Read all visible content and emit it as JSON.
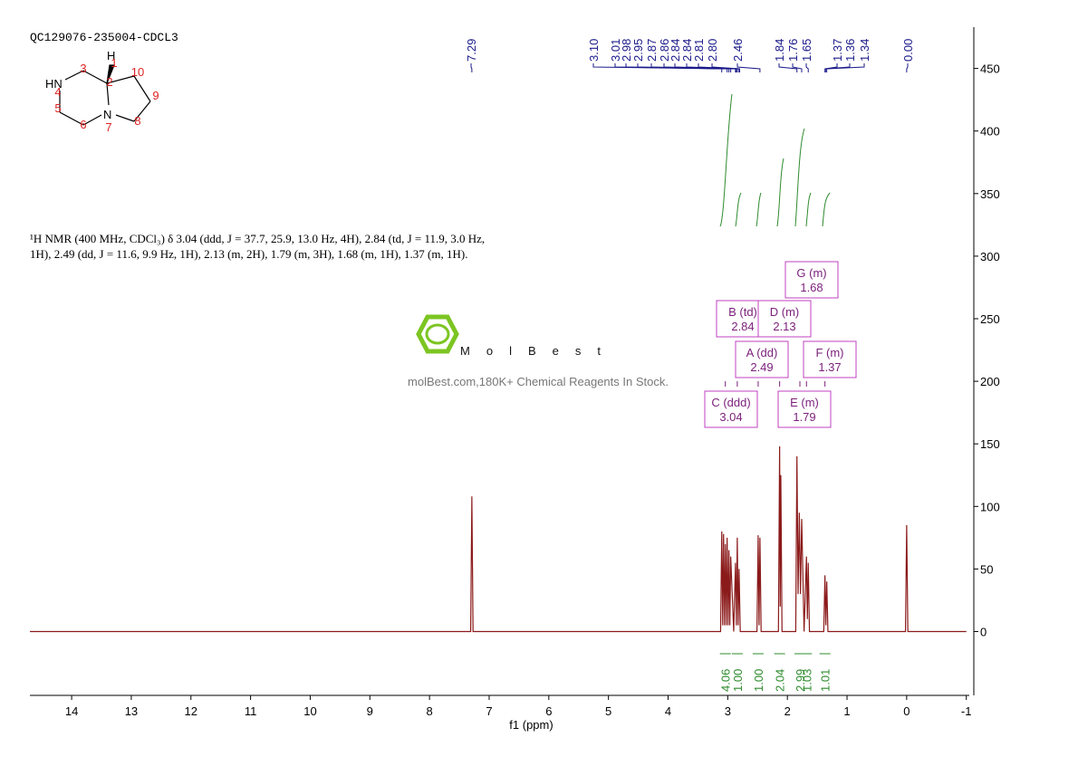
{
  "chart_data": {
    "type": "line",
    "title": "QC129076-235004-CDCL3",
    "annotation": [
      "¹H NMR (400 MHz, CDCl₃) δ 3.04 (ddd, J = 37.7, 25.9, 13.0 Hz, 4H), 2.84 (td, J = 11.9, 3.0 Hz,",
      "1H), 2.49 (dd, J = 11.6, 9.9 Hz, 1H), 2.13 (m, 2H), 1.79 (m, 3H), 1.68 (m, 1H), 1.37 (m, 1H)."
    ],
    "watermark": {
      "brand": "MolBest",
      "tagline": "molBest.com,180K+ Chemical Reagents In Stock."
    },
    "structure": {
      "hydrogen": "H",
      "amine": "HN",
      "nitrogen": "N",
      "atom_numbers": [
        1,
        2,
        3,
        4,
        5,
        6,
        7,
        8,
        9,
        10
      ]
    },
    "xlabel": "f1 (ppm)",
    "xlim": [
      14.7,
      -1.05
    ],
    "xticks": [
      14,
      13,
      12,
      11,
      10,
      9,
      8,
      7,
      6,
      5,
      4,
      3,
      2,
      1,
      0,
      -1
    ],
    "ylim": [
      -51,
      483
    ],
    "yticks": [
      0,
      50,
      100,
      150,
      200,
      250,
      300,
      350,
      400,
      450
    ],
    "color": "#8b1a1a",
    "x": [
      14.7,
      7.31,
      7.29,
      7.27,
      3.12,
      3.1,
      3.085,
      3.07,
      3.055,
      3.04,
      3.025,
      3.01,
      2.995,
      2.98,
      2.965,
      2.95,
      2.9,
      2.87,
      2.855,
      2.84,
      2.825,
      2.81,
      2.79,
      2.51,
      2.49,
      2.475,
      2.46,
      2.44,
      2.15,
      2.13,
      2.12,
      2.11,
      2.09,
      1.86,
      1.84,
      1.82,
      1.8,
      1.78,
      1.76,
      1.72,
      1.68,
      1.665,
      1.65,
      1.63,
      1.39,
      1.37,
      1.355,
      1.34,
      1.32,
      0.02,
      0.0,
      -0.02,
      -1.0
    ],
    "values": [
      0,
      0,
      108,
      0,
      0,
      80,
      5,
      78,
      5,
      70,
      5,
      75,
      5,
      65,
      5,
      60,
      0,
      55,
      5,
      75,
      5,
      50,
      0,
      0,
      77,
      5,
      75,
      0,
      0,
      148,
      20,
      125,
      0,
      0,
      140,
      30,
      95,
      30,
      90,
      0,
      60,
      10,
      55,
      0,
      0,
      45,
      5,
      40,
      0,
      0,
      85,
      0,
      0
    ],
    "peak_labels": [
      7.29,
      {
        "value": 3.1,
        "label": "3.10"
      },
      3.01,
      2.98,
      2.95,
      2.87,
      2.86,
      2.84,
      2.84,
      2.81,
      {
        "value": 2.8,
        "label": "2.80"
      },
      2.46,
      1.84,
      1.76,
      1.65,
      1.37,
      1.36,
      1.34,
      {
        "value": 0,
        "label": "0.00"
      }
    ],
    "multiplets": [
      {
        "name": "C (ddd)",
        "shift": 3.04,
        "integral": 4.06
      },
      {
        "name": "B (td)",
        "shift": 2.84,
        "integral": {
          "value": 1,
          "label": "1.00"
        }
      },
      {
        "name": "A (dd)",
        "shift": 2.49,
        "integral": {
          "value": 1,
          "label": "1.00"
        }
      },
      {
        "name": "D (m)",
        "shift": 2.13,
        "integral": 2.04
      },
      {
        "name": "E (m)",
        "shift": 1.79,
        "integral": 2.99
      },
      {
        "name": "G (m)",
        "shift": 1.68,
        "integral": 1.03
      },
      {
        "name": "F (m)",
        "shift": 1.37,
        "integral": 1.01
      }
    ]
  }
}
